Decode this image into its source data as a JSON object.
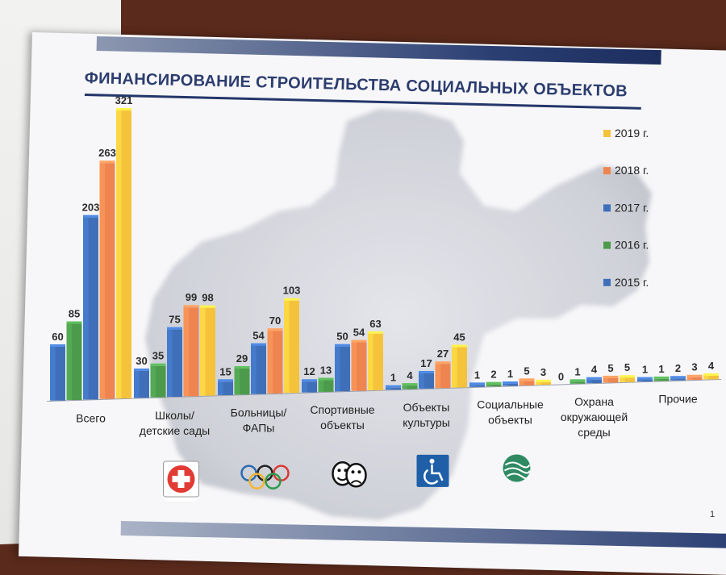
{
  "chart_data": {
    "type": "bar",
    "title": "ФИНАНСИРОВАНИЕ СТРОИТЕЛЬСТВА СОЦИАЛЬНЫХ ОБЪЕКТОВ",
    "categories": [
      [
        "Всего"
      ],
      [
        "Школы/",
        "детские сады"
      ],
      [
        "Больницы/",
        "ФАПы"
      ],
      [
        "Спортивные",
        "объекты"
      ],
      [
        "Объекты",
        "культуры"
      ],
      [
        "Социальные",
        "объекты"
      ],
      [
        "Охрана",
        "окружающей",
        "среды"
      ],
      [
        "Прочие"
      ]
    ],
    "series": [
      {
        "name": "2015 г.",
        "color": "#3f6fb8",
        "values": [
          60,
          30,
          15,
          12,
          1,
          1,
          0,
          1
        ]
      },
      {
        "name": "2016 г.",
        "color": "#4c9a4c",
        "values": [
          85,
          35,
          29,
          13,
          4,
          2,
          1,
          1
        ]
      },
      {
        "name": "2017 г.",
        "color": "#3f6fb8",
        "values": [
          203,
          75,
          54,
          50,
          17,
          1,
          4,
          2
        ]
      },
      {
        "name": "2018 г.",
        "color": "#ee8450",
        "values": [
          263,
          99,
          70,
          54,
          27,
          5,
          5,
          3
        ]
      },
      {
        "name": "2019 г.",
        "color": "#f5c23c",
        "values": [
          321,
          98,
          103,
          63,
          45,
          3,
          5,
          4
        ]
      }
    ],
    "ylim": [
      0,
      321
    ],
    "legend_position": "right",
    "legend_order": [
      "2019 г.",
      "2018 г.",
      "2017 г.",
      "2016 г.",
      "2015 г."
    ],
    "grid": false
  },
  "category_icons": [
    "children-reading-icon",
    "red-cross-icon",
    "olympic-rings-icon",
    "theater-masks-icon",
    "wheelchair-icon",
    "ecology-wave-icon",
    "",
    ""
  ],
  "page_number": "1"
}
